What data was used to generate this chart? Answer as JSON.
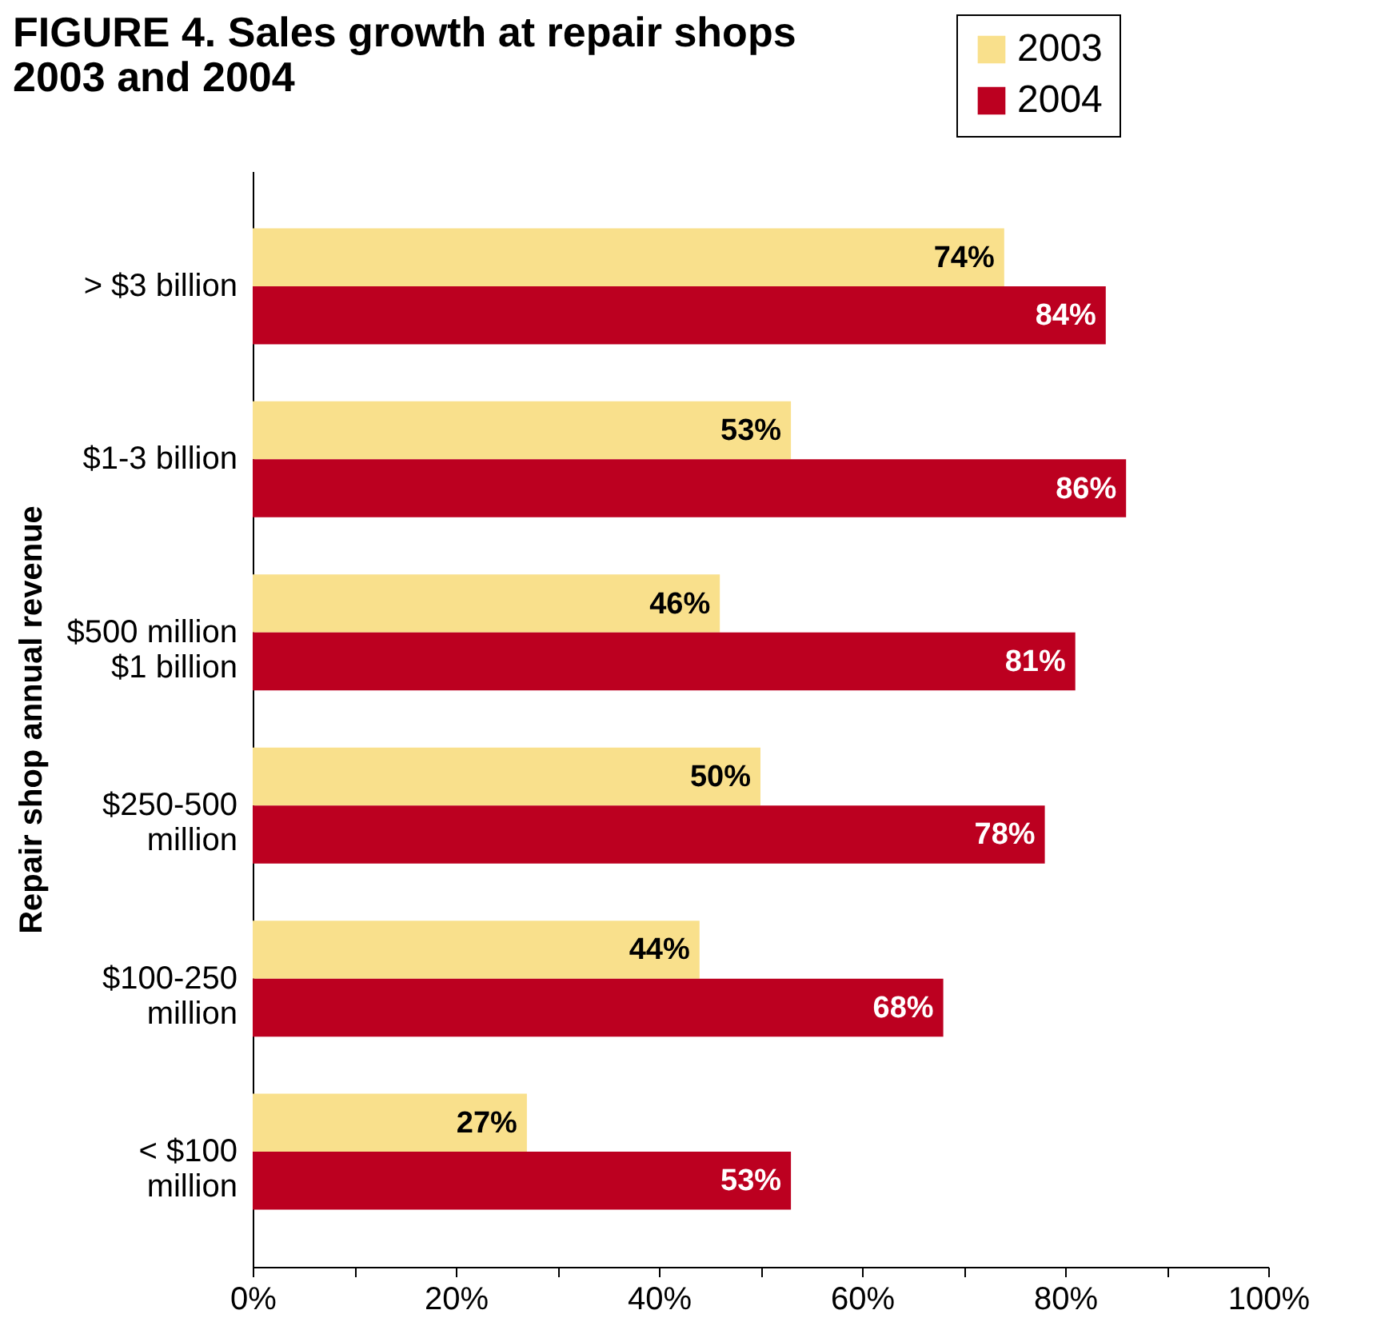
{
  "chart_data": {
    "type": "bar",
    "orientation": "horizontal",
    "title": "FIGURE 4. Sales growth at repair shops 2003 and 2004",
    "ylabel": "Repair shop annual revenue",
    "categories": [
      "> $3 billion",
      "$1-3 billion",
      "$500 million $1 billion",
      "$250-500 million",
      "$100-250 million",
      "< $100 million"
    ],
    "series": [
      {
        "name": "2003",
        "color": "#f9e08c",
        "values": [
          74,
          53,
          46,
          50,
          44,
          27
        ],
        "value_labels": [
          "74%",
          "53%",
          "46%",
          "50%",
          "44%",
          "27%"
        ]
      },
      {
        "name": "2004",
        "color": "#bc0020",
        "values": [
          84,
          86,
          81,
          78,
          68,
          53
        ],
        "value_labels": [
          "84%",
          "86%",
          "81%",
          "78%",
          "68%",
          "53%"
        ]
      }
    ],
    "xlim": [
      0,
      100
    ],
    "xticks": [
      {
        "value": 0,
        "label": "0%"
      },
      {
        "value": 10,
        "label": null
      },
      {
        "value": 20,
        "label": "20%"
      },
      {
        "value": 30,
        "label": null
      },
      {
        "value": 40,
        "label": "40%"
      },
      {
        "value": 50,
        "label": null
      },
      {
        "value": 60,
        "label": "60%"
      },
      {
        "value": 70,
        "label": null
      },
      {
        "value": 80,
        "label": "80%"
      },
      {
        "value": 90,
        "label": null
      },
      {
        "value": 100,
        "label": "100%"
      }
    ],
    "legend": "top right",
    "grid": false
  }
}
